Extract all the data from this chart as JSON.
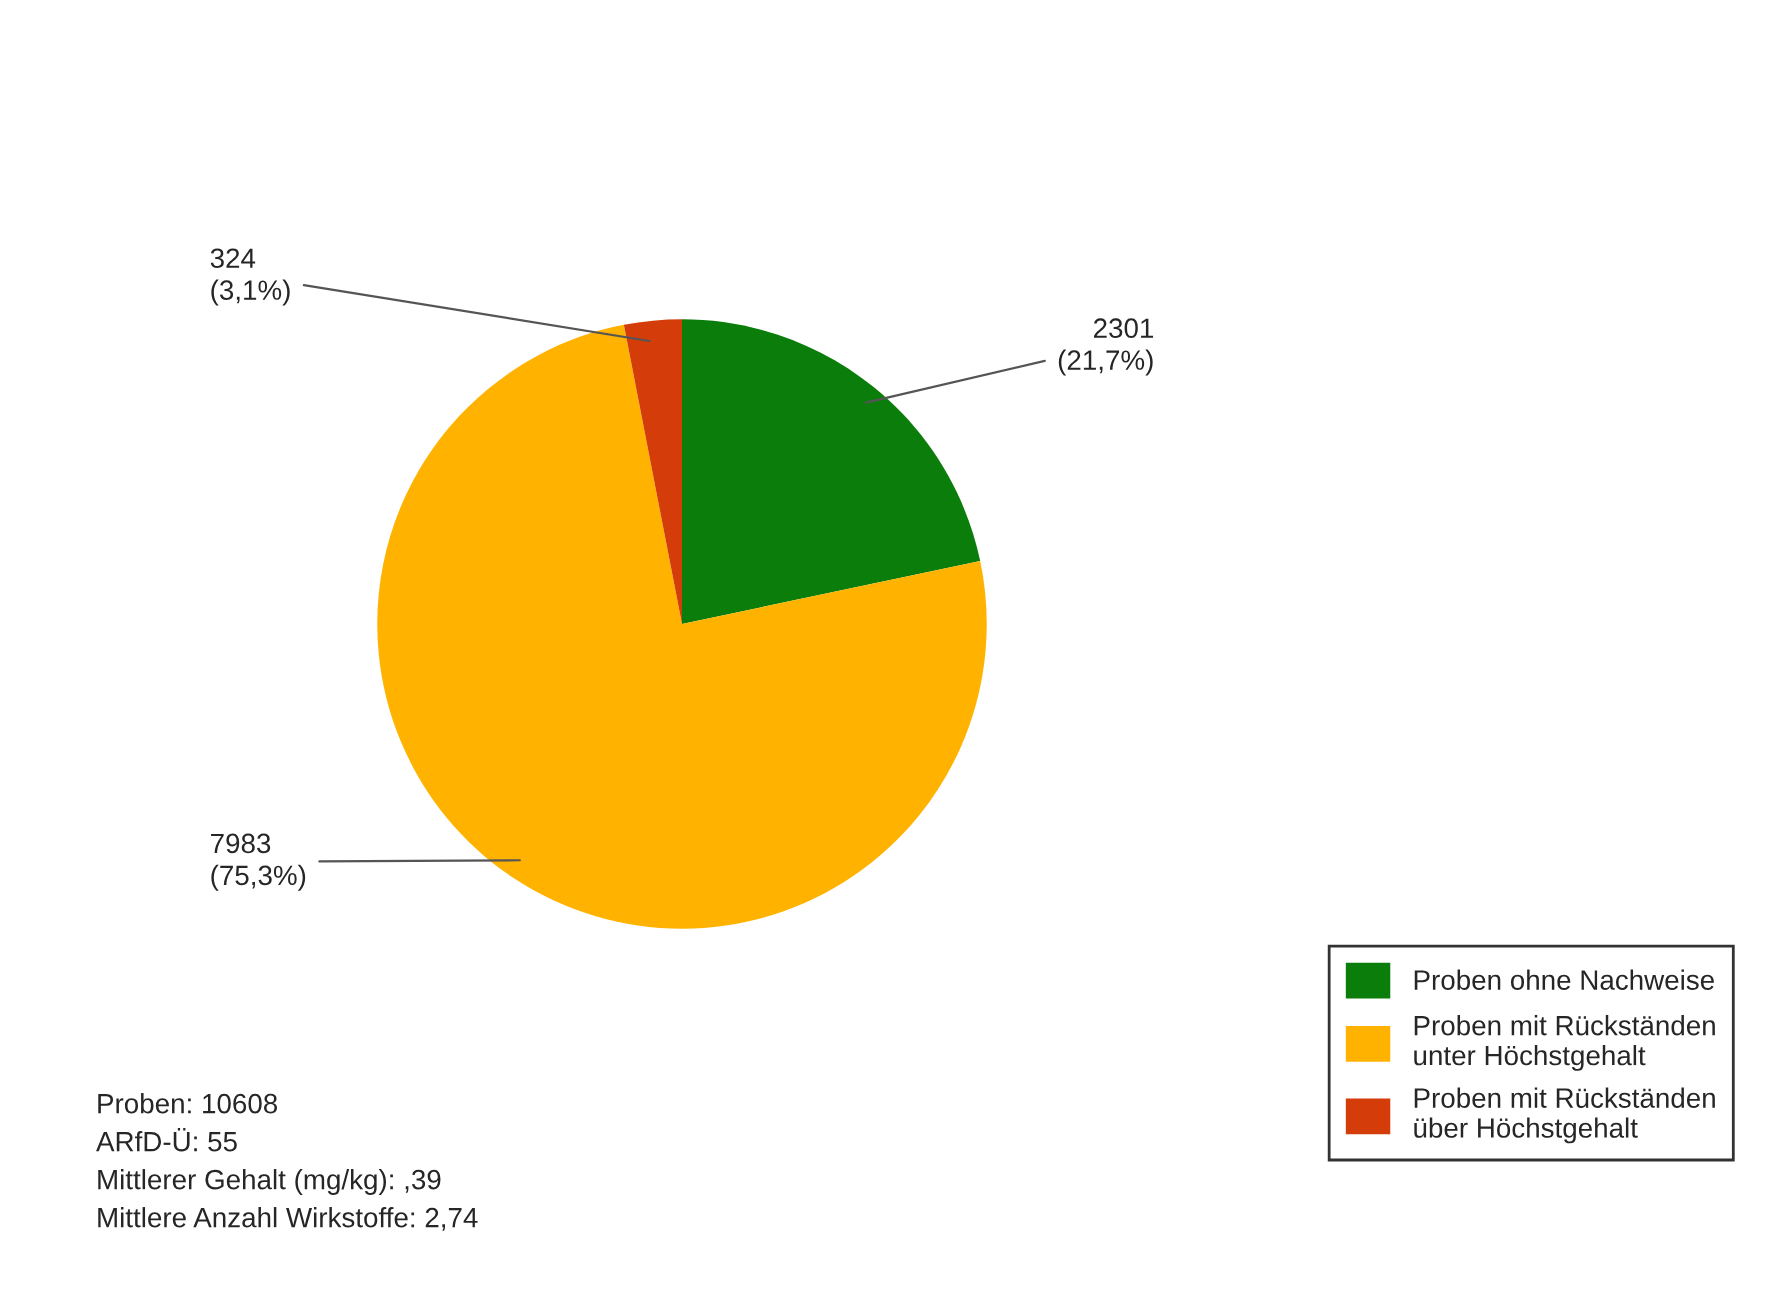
{
  "chart_data": {
    "type": "pie",
    "categories": [
      "Proben ohne Nachweise",
      "Proben mit Rückständen\nunter Höchstgehalt",
      "Proben mit Rückständen\nüber Höchstgehalt"
    ],
    "values": [
      2301,
      7983,
      324
    ],
    "colors": [
      "#0b7d0b",
      "#ffb300",
      "#d43d0a"
    ],
    "value_labels": [
      "2301\n(21,7%)",
      "7983\n(75,3%)",
      "324\n(3,1%)"
    ],
    "legend": "bottom right",
    "annotations": [
      "Proben: 10608",
      "ARfD-Ü: 55",
      "Mittlerer Gehalt (mg/kg): ,39",
      "Mittlere Anzahl Wirkstoffe: 2,74"
    ]
  }
}
